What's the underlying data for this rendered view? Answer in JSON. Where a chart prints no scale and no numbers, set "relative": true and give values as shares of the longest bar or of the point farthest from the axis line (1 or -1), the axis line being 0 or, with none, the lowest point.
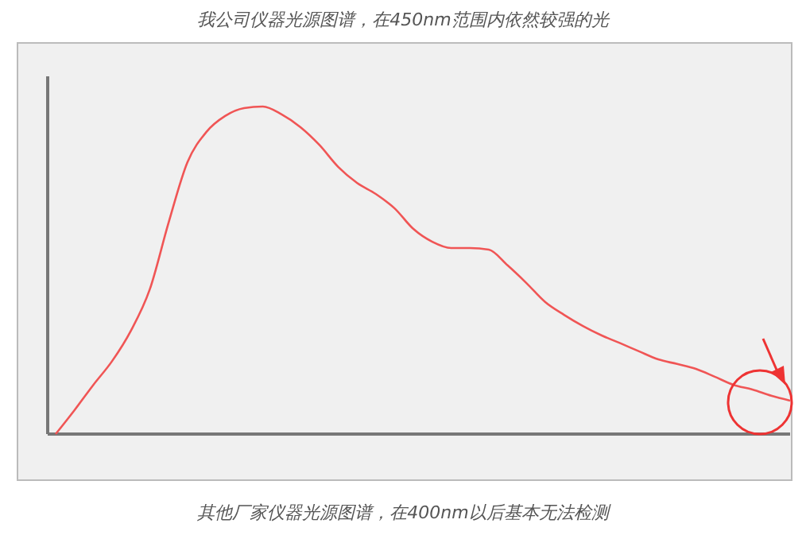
{
  "chart_data": {
    "type": "line",
    "title": "我公司仪器光源图谱，在450nm范围内依然较强的光",
    "annotations": [
      "其他厂家仪器光源图谱，在400nm以后基本无法检测"
    ],
    "relative": true,
    "categories": [
      null,
      null,
      null,
      null,
      null,
      null,
      null,
      null,
      null,
      null,
      null,
      null,
      null,
      null,
      null,
      null,
      null,
      null,
      null,
      null,
      null,
      null,
      null,
      null,
      null,
      null,
      null,
      null,
      null,
      null,
      null,
      null,
      null,
      null,
      null,
      null,
      null,
      null,
      null,
      null
    ],
    "series": [
      {
        "color": "#f05555",
        "values": [
          0,
          0.073,
          0.15,
          0.223,
          0.316,
          0.442,
          0.646,
          0.83,
          0.922,
          0.971,
          0.995,
          1,
          0.976,
          0.937,
          0.883,
          0.816,
          0.767,
          0.733,
          0.689,
          0.626,
          0.587,
          0.568,
          0.568,
          0.563,
          0.515,
          0.461,
          0.403,
          0.364,
          0.33,
          0.301,
          0.277,
          0.252,
          0.228,
          0.214,
          0.199,
          0.175,
          0.15,
          0.136,
          0.117,
          0.102
        ]
      }
    ]
  }
}
